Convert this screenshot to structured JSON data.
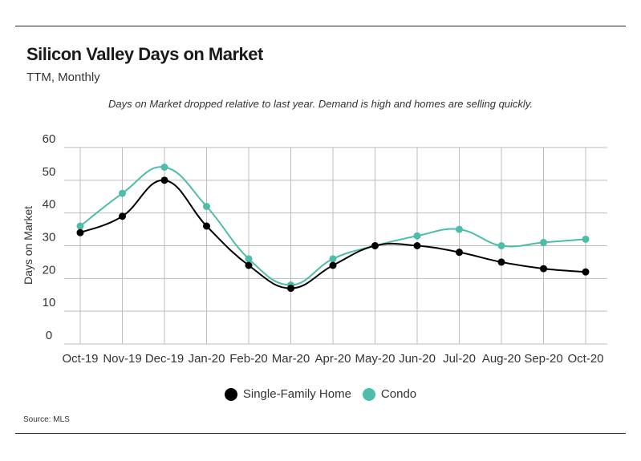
{
  "header": {
    "title": "Silicon Valley Days on Market",
    "subtitle": "TTM, Monthly",
    "note": "Days on Market dropped relative to last year. Demand is high and homes are selling quickly."
  },
  "footer": {
    "source": "Source:  MLS"
  },
  "colors": {
    "single_family": "#000000",
    "condo": "#4dbdaa",
    "grid": "#bdbdbd"
  },
  "chart_data": {
    "type": "line",
    "categories": [
      "Oct-19",
      "Nov-19",
      "Dec-19",
      "Jan-20",
      "Feb-20",
      "Mar-20",
      "Apr-20",
      "May-20",
      "Jun-20",
      "Jul-20",
      "Aug-20",
      "Sep-20",
      "Oct-20"
    ],
    "series": [
      {
        "name": "Single-Family Home",
        "values": [
          34,
          39,
          50,
          36,
          24,
          17,
          24,
          30,
          30,
          28,
          25,
          23,
          22
        ]
      },
      {
        "name": "Condo",
        "values": [
          36,
          46,
          54,
          42,
          26,
          18,
          26,
          30,
          33,
          35,
          30,
          31,
          32
        ]
      }
    ],
    "ylabel": "Days on Market",
    "xlabel": "",
    "ylim": [
      0,
      60
    ],
    "yticks": [
      "0",
      "10",
      "20",
      "30",
      "40",
      "50",
      "60"
    ],
    "grid": true,
    "legend_position": "bottom-center"
  }
}
